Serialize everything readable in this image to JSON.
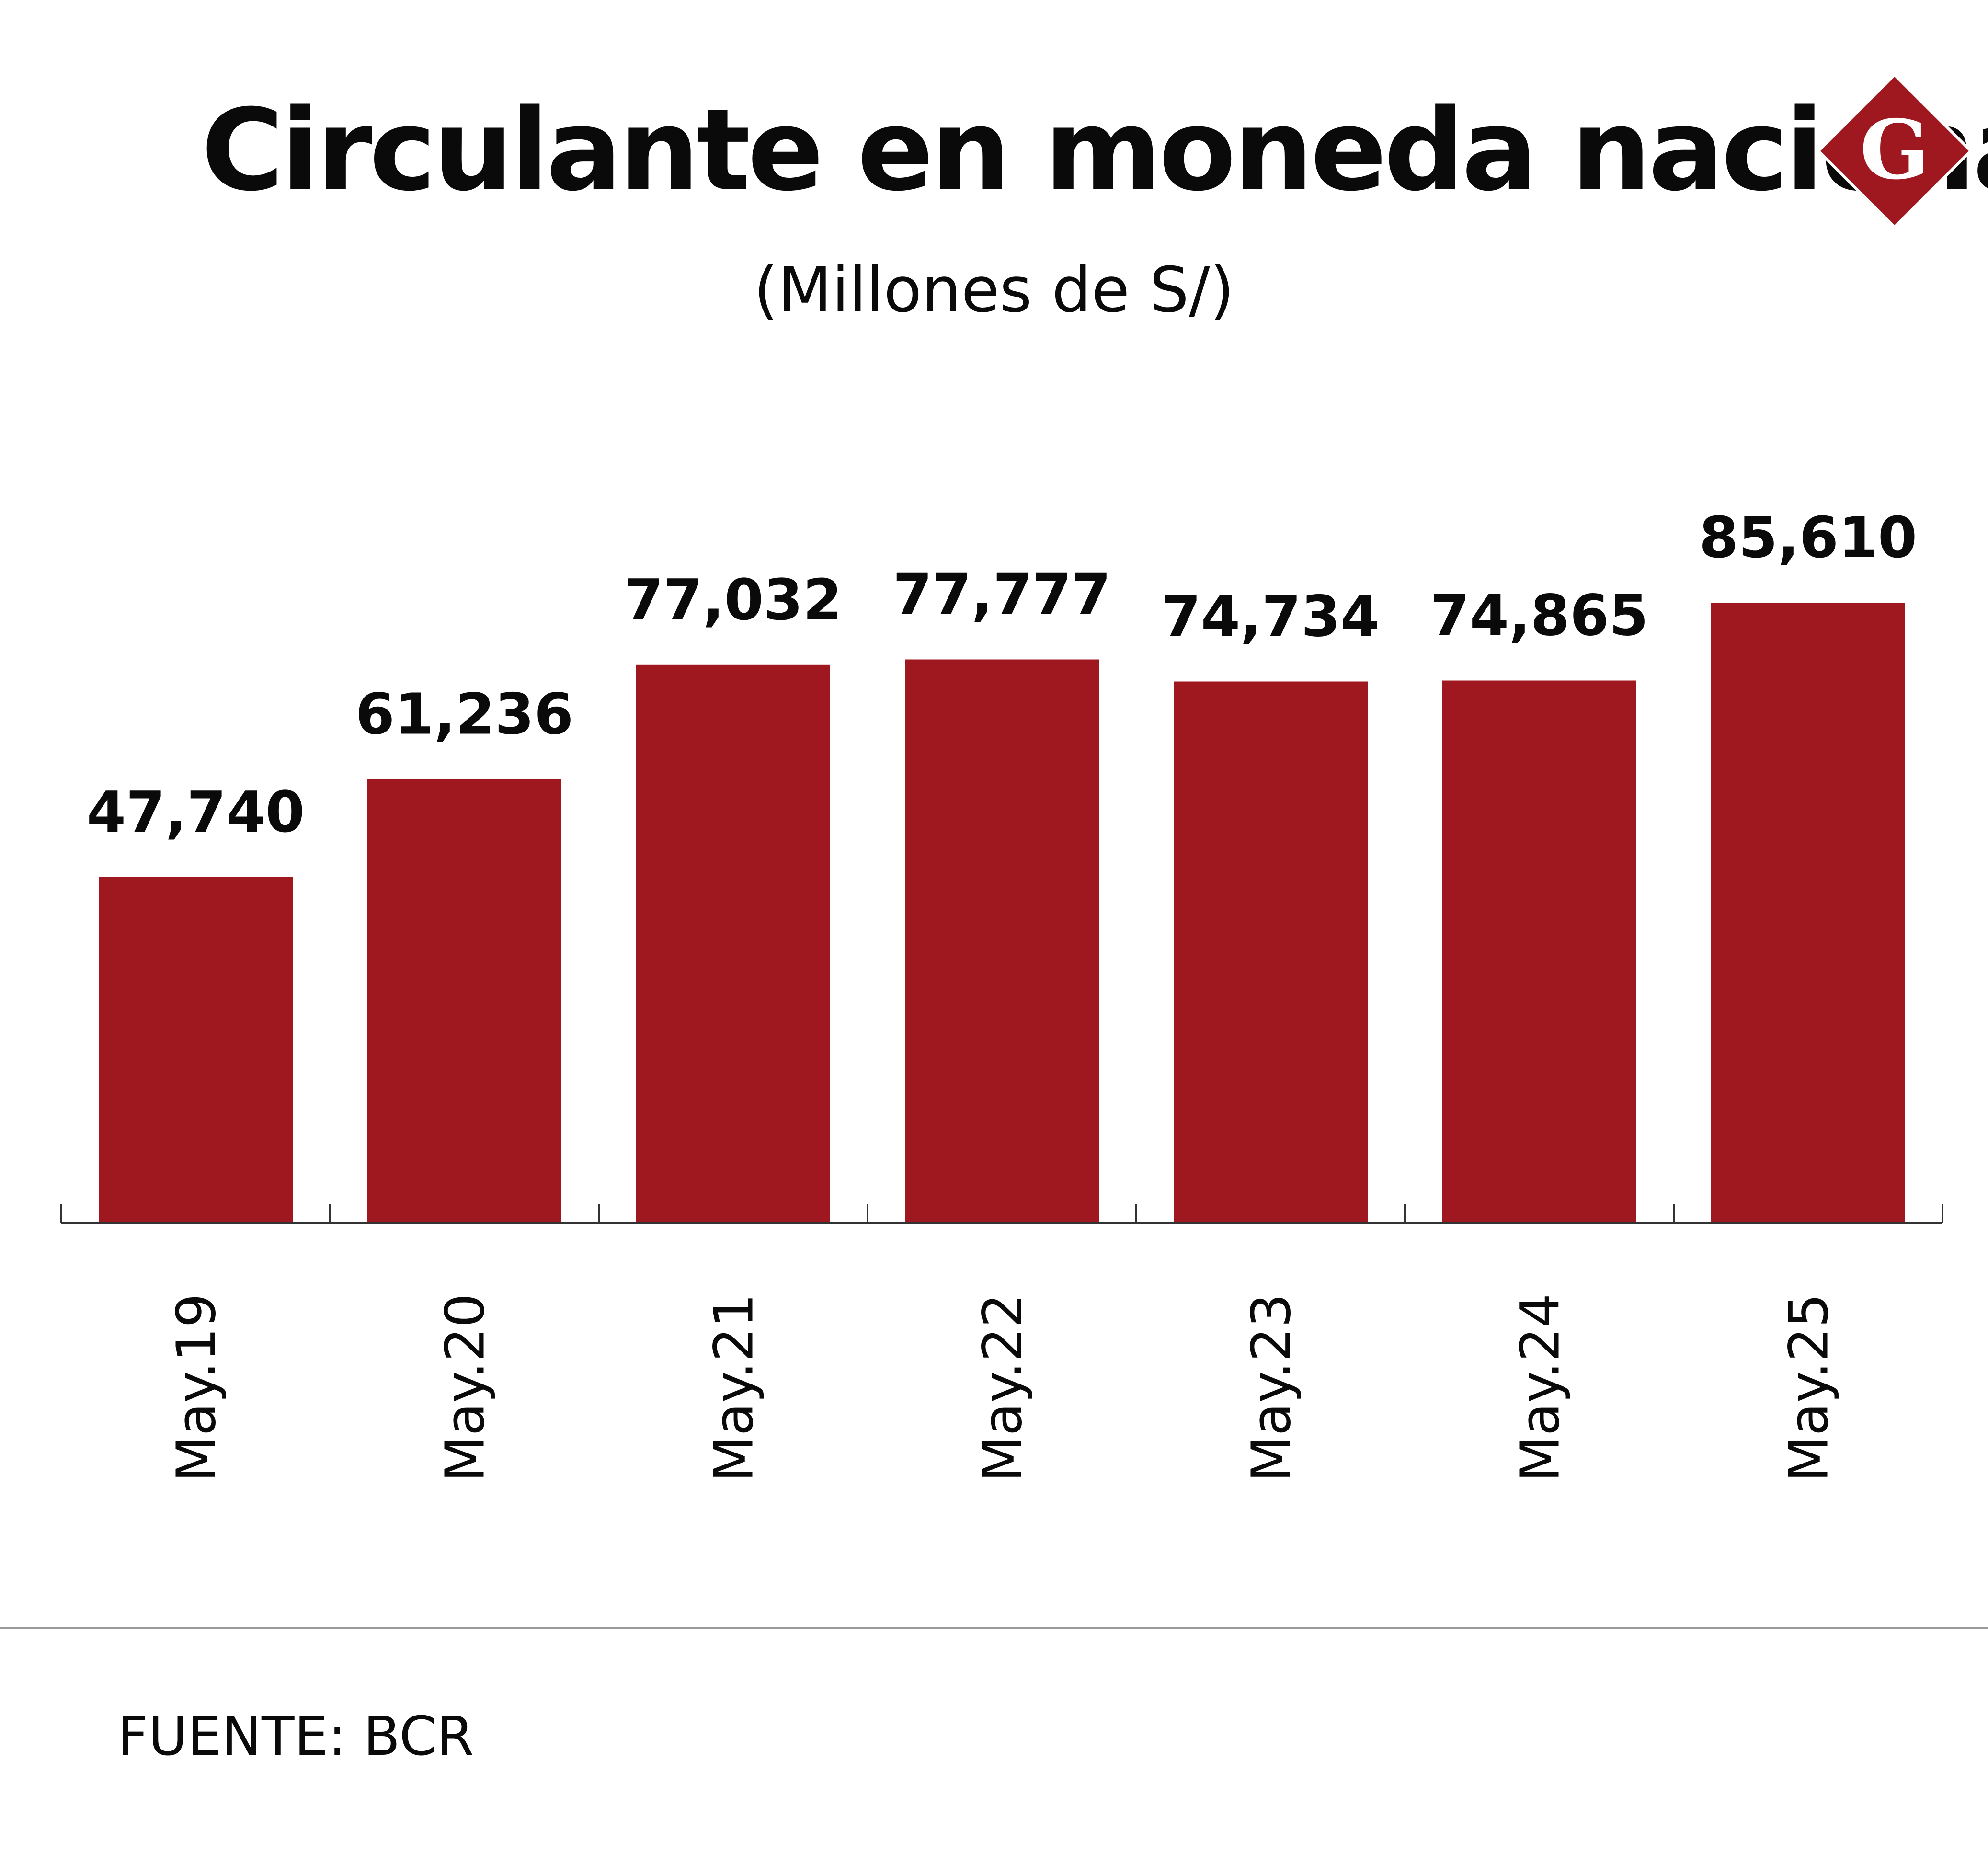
{
  "header": {
    "title": "Circulante en moneda nacional",
    "subtitle": "(Millones de S/)",
    "logo_letter": "G"
  },
  "footer": {
    "source": "FUENTE: BCR"
  },
  "colors": {
    "bar": "#a0181f",
    "logo_fill": "#a0181f",
    "logo_border": "#ffffff",
    "text": "#0a0a0a",
    "axis": "#333333",
    "divider": "#9a9a9a"
  },
  "chart_data": {
    "type": "bar",
    "categories": [
      "May.19",
      "May.20",
      "May.21",
      "May.22",
      "May.23",
      "May.24",
      "May.25"
    ],
    "values": [
      47740,
      61236,
      77032,
      77777,
      74734,
      74865,
      85610
    ],
    "value_labels": [
      "47,740",
      "61,236",
      "77,032",
      "77,777",
      "74,734",
      "74,865",
      "85,610"
    ],
    "title": "Circulante en moneda nacional",
    "subtitle": "(Millones de S/)",
    "xlabel": "",
    "ylabel": "",
    "ylim": [
      0,
      85610
    ],
    "grid": false,
    "legend": "none",
    "x_tick_rotation": "vertical"
  }
}
